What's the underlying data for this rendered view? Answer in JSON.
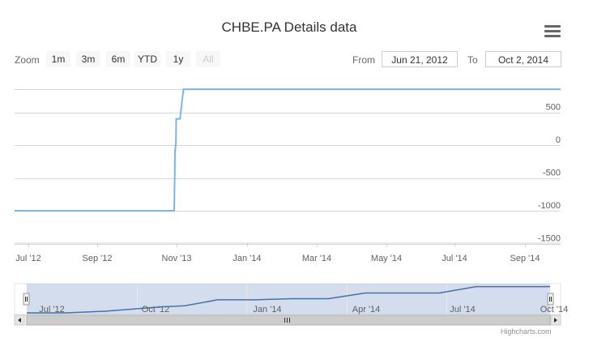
{
  "title": "CHBE.PA Details data",
  "range_selector": {
    "zoom_label": "Zoom",
    "buttons": [
      "1m",
      "3m",
      "6m",
      "YTD",
      "1y",
      "All"
    ],
    "from_label": "From",
    "from_value": "Jun 21, 2012",
    "to_label": "To",
    "to_value": "Oct 2, 2014"
  },
  "menu_icon": "hamburger-menu-icon",
  "credits": "Highcharts.com",
  "chart_data": {
    "type": "line",
    "title": "CHBE.PA Details data",
    "x_ticks": [
      "Jul '12",
      "Sep '12",
      "Nov '13",
      "Jan '14",
      "Mar '14",
      "May '14",
      "Jul '14",
      "Sep '14"
    ],
    "y_ticks": [
      500,
      0,
      -500,
      -1000,
      -1500
    ],
    "ylim": [
      -1500,
      1000
    ],
    "y_axis_side": "right",
    "grid": true,
    "line_color": "#7cb5ec",
    "series": [
      {
        "x": [
          "2012-06-21",
          "2013-10-08",
          "2013-10-10",
          "2013-10-12",
          "2013-10-14",
          "2013-10-16",
          "2013-10-19",
          "2013-10-22",
          "2013-10-25",
          "2013-10-28",
          "2013-10-31",
          "2013-11-04",
          "2013-11-07",
          "2013-11-10",
          "2014-10-02"
        ],
        "values": [
          -1000,
          -1000,
          -880,
          -580,
          -500,
          -80,
          -80,
          0,
          0,
          400,
          400,
          400,
          850,
          850,
          850
        ]
      }
    ],
    "navigator": {
      "x_ticks": [
        "Jul '12",
        "Oct '12",
        "Jan '14",
        "Apr '14",
        "Jul '14",
        "Oct '14"
      ]
    }
  }
}
